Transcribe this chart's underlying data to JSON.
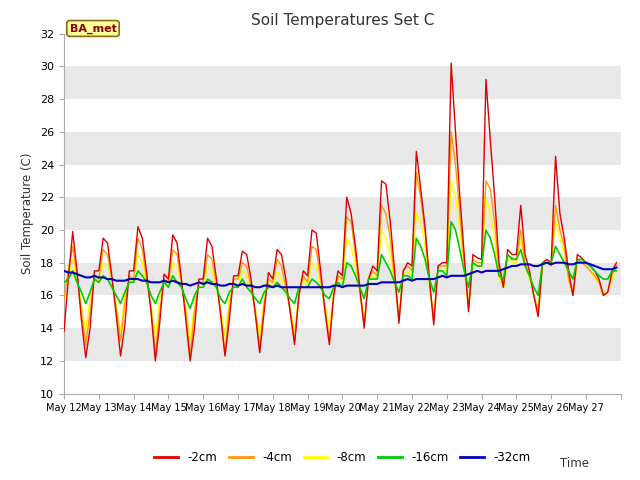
{
  "title": "Soil Temperatures Set C",
  "xlabel": "Time",
  "ylabel": "Soil Temperature (C)",
  "ylim": [
    10,
    32
  ],
  "yticks": [
    10,
    12,
    14,
    16,
    18,
    20,
    22,
    24,
    26,
    28,
    30,
    32
  ],
  "annotation": "BA_met",
  "fig_facecolor": "#ffffff",
  "plot_bg_color": "#e8e8e8",
  "grid_colors": [
    "#ffffff",
    "#e8e8e8"
  ],
  "legend_labels": [
    "-2cm",
    "-4cm",
    "-8cm",
    "-16cm",
    "-32cm"
  ],
  "legend_colors": [
    "#dd0000",
    "#ff9900",
    "#ffff00",
    "#00cc00",
    "#0000bb"
  ],
  "line_widths": [
    1.0,
    1.0,
    1.0,
    1.2,
    1.5
  ],
  "x_tick_labels": [
    "May 12",
    "May 13",
    "May 14",
    "May 15",
    "May 16",
    "May 17",
    "May 18",
    "May 19",
    "May 20",
    "May 21",
    "May 22",
    "May 23",
    "May 24",
    "May 25",
    "May 26",
    "May 27"
  ],
  "n_days": 16,
  "pts_per_day": 8,
  "d2cm": [
    13.8,
    17.0,
    19.9,
    17.5,
    14.5,
    12.2,
    14.0,
    17.5,
    17.5,
    19.5,
    19.2,
    17.2,
    14.8,
    12.3,
    14.2,
    17.5,
    17.5,
    20.2,
    19.5,
    17.4,
    15.0,
    12.0,
    14.3,
    17.3,
    17.0,
    19.7,
    19.2,
    17.0,
    14.5,
    12.0,
    14.0,
    17.0,
    17.0,
    19.5,
    19.0,
    17.1,
    14.8,
    12.3,
    14.5,
    17.2,
    17.2,
    18.7,
    18.5,
    17.0,
    14.8,
    12.5,
    15.0,
    17.4,
    17.0,
    18.8,
    18.5,
    17.0,
    15.0,
    13.0,
    16.0,
    17.5,
    17.2,
    20.0,
    19.8,
    17.5,
    15.0,
    13.0,
    16.0,
    17.5,
    17.2,
    22.0,
    21.0,
    19.0,
    16.5,
    14.0,
    17.0,
    17.8,
    17.5,
    23.0,
    22.8,
    20.5,
    17.5,
    14.3,
    17.5,
    18.0,
    17.8,
    24.8,
    22.5,
    20.2,
    17.0,
    14.2,
    17.8,
    18.0,
    18.0,
    30.2,
    26.0,
    22.0,
    18.5,
    15.0,
    18.5,
    18.3,
    18.2,
    29.2,
    25.5,
    22.0,
    18.0,
    16.5,
    18.8,
    18.5,
    18.5,
    21.5,
    18.5,
    17.5,
    16.0,
    14.7,
    18.0,
    18.2,
    18.0,
    24.5,
    21.0,
    19.5,
    17.5,
    16.0,
    18.5,
    18.3,
    18.0,
    17.8,
    17.5,
    17.0,
    16.0,
    16.2,
    17.5,
    18.0
  ],
  "d4cm": [
    15.8,
    17.5,
    19.0,
    17.2,
    15.0,
    13.0,
    15.0,
    17.2,
    17.0,
    18.8,
    18.5,
    17.0,
    15.2,
    13.2,
    15.5,
    17.2,
    17.0,
    19.5,
    18.8,
    17.0,
    15.2,
    12.5,
    15.0,
    17.0,
    16.8,
    18.8,
    18.5,
    16.8,
    15.0,
    12.3,
    15.0,
    16.8,
    16.8,
    18.5,
    18.2,
    16.8,
    15.0,
    12.5,
    15.2,
    17.0,
    17.0,
    18.0,
    17.8,
    16.5,
    15.0,
    12.8,
    15.5,
    17.0,
    16.8,
    18.2,
    17.8,
    16.5,
    15.0,
    13.2,
    16.0,
    17.2,
    16.8,
    19.0,
    18.8,
    17.0,
    15.2,
    13.2,
    16.0,
    17.2,
    17.0,
    20.8,
    20.5,
    18.5,
    16.2,
    14.2,
    17.0,
    17.5,
    17.2,
    21.5,
    21.0,
    19.5,
    17.0,
    14.5,
    17.5,
    17.8,
    17.5,
    23.5,
    22.0,
    19.8,
    16.8,
    14.5,
    17.8,
    17.8,
    17.8,
    26.0,
    24.0,
    21.0,
    18.0,
    15.2,
    18.2,
    18.0,
    18.0,
    23.0,
    22.5,
    20.5,
    17.5,
    16.5,
    18.5,
    18.3,
    18.2,
    20.0,
    18.0,
    17.2,
    16.0,
    15.0,
    18.0,
    18.0,
    17.8,
    21.5,
    20.0,
    19.0,
    17.0,
    16.0,
    18.2,
    18.0,
    17.8,
    17.5,
    17.2,
    16.8,
    16.0,
    16.2,
    17.3,
    17.8
  ],
  "d8cm": [
    16.5,
    17.2,
    18.2,
    17.0,
    15.5,
    13.8,
    15.8,
    17.0,
    16.8,
    18.0,
    17.8,
    16.8,
    15.5,
    13.8,
    16.0,
    17.0,
    16.8,
    18.5,
    18.0,
    16.8,
    15.5,
    13.5,
    15.8,
    16.8,
    16.5,
    18.0,
    17.8,
    16.5,
    15.3,
    13.2,
    15.5,
    16.5,
    16.5,
    17.8,
    17.5,
    16.5,
    15.2,
    13.5,
    15.8,
    16.8,
    16.5,
    17.5,
    17.2,
    16.2,
    15.2,
    13.5,
    15.8,
    16.8,
    16.5,
    17.5,
    17.0,
    16.2,
    15.2,
    13.8,
    16.2,
    17.0,
    16.5,
    18.0,
    17.8,
    16.5,
    15.5,
    14.0,
    16.2,
    17.0,
    16.8,
    19.5,
    19.0,
    17.8,
    16.2,
    14.5,
    17.0,
    17.2,
    17.0,
    20.0,
    19.5,
    18.5,
    16.8,
    14.8,
    17.2,
    17.5,
    17.2,
    21.0,
    20.5,
    19.0,
    16.5,
    14.8,
    17.5,
    17.5,
    17.5,
    23.0,
    22.0,
    20.0,
    17.5,
    15.5,
    18.0,
    17.8,
    17.8,
    22.0,
    21.0,
    19.5,
    17.0,
    16.5,
    18.2,
    18.0,
    18.0,
    19.5,
    17.8,
    17.0,
    16.0,
    15.2,
    17.8,
    18.0,
    17.8,
    20.5,
    19.5,
    18.5,
    17.0,
    16.0,
    18.0,
    18.0,
    17.8,
    17.5,
    17.0,
    16.8,
    16.2,
    16.2,
    17.0,
    17.5
  ],
  "d16cm": [
    16.8,
    17.0,
    17.5,
    16.8,
    16.2,
    15.5,
    16.2,
    17.0,
    16.8,
    17.2,
    17.0,
    16.5,
    16.0,
    15.5,
    16.2,
    16.8,
    16.8,
    17.5,
    17.2,
    16.8,
    16.0,
    15.5,
    16.2,
    16.8,
    16.5,
    17.2,
    16.8,
    16.5,
    15.8,
    15.2,
    16.0,
    16.5,
    16.5,
    17.0,
    16.8,
    16.5,
    15.8,
    15.5,
    16.2,
    16.5,
    16.5,
    17.0,
    16.5,
    16.2,
    15.8,
    15.5,
    16.2,
    16.5,
    16.5,
    16.8,
    16.5,
    16.2,
    15.8,
    15.5,
    16.5,
    16.5,
    16.5,
    17.0,
    16.8,
    16.5,
    16.0,
    15.8,
    16.5,
    16.8,
    16.5,
    18.0,
    17.8,
    17.2,
    16.5,
    15.8,
    17.0,
    17.0,
    17.0,
    18.5,
    18.0,
    17.5,
    16.8,
    16.2,
    17.2,
    17.2,
    17.0,
    19.5,
    19.0,
    18.2,
    17.0,
    16.2,
    17.5,
    17.5,
    17.2,
    20.5,
    20.0,
    18.8,
    17.5,
    16.5,
    18.0,
    17.8,
    17.8,
    20.0,
    19.5,
    18.5,
    17.2,
    17.0,
    18.5,
    18.2,
    18.2,
    18.8,
    17.8,
    17.2,
    16.5,
    16.0,
    18.0,
    18.0,
    18.0,
    19.0,
    18.5,
    18.0,
    17.5,
    17.0,
    18.2,
    18.2,
    18.0,
    17.8,
    17.5,
    17.2,
    17.0,
    17.0,
    17.5,
    17.5
  ],
  "d32cm": [
    17.5,
    17.4,
    17.4,
    17.3,
    17.2,
    17.1,
    17.1,
    17.2,
    17.1,
    17.1,
    17.0,
    17.0,
    16.9,
    16.9,
    16.9,
    17.0,
    17.0,
    17.0,
    16.9,
    16.9,
    16.8,
    16.8,
    16.8,
    16.9,
    16.8,
    16.9,
    16.8,
    16.7,
    16.7,
    16.6,
    16.7,
    16.8,
    16.7,
    16.8,
    16.7,
    16.7,
    16.6,
    16.6,
    16.7,
    16.7,
    16.6,
    16.7,
    16.6,
    16.6,
    16.5,
    16.5,
    16.6,
    16.6,
    16.5,
    16.6,
    16.5,
    16.5,
    16.5,
    16.5,
    16.5,
    16.5,
    16.5,
    16.5,
    16.5,
    16.5,
    16.5,
    16.5,
    16.6,
    16.6,
    16.5,
    16.6,
    16.6,
    16.6,
    16.6,
    16.6,
    16.7,
    16.7,
    16.7,
    16.8,
    16.8,
    16.8,
    16.8,
    16.8,
    16.9,
    17.0,
    16.9,
    17.0,
    17.0,
    17.0,
    17.0,
    17.0,
    17.1,
    17.2,
    17.1,
    17.2,
    17.2,
    17.2,
    17.2,
    17.3,
    17.4,
    17.5,
    17.4,
    17.5,
    17.5,
    17.5,
    17.5,
    17.6,
    17.7,
    17.8,
    17.8,
    17.9,
    17.9,
    17.9,
    17.8,
    17.8,
    17.9,
    18.0,
    17.9,
    18.0,
    18.0,
    18.0,
    17.9,
    17.9,
    18.0,
    18.0,
    18.0,
    17.9,
    17.8,
    17.7,
    17.6,
    17.6,
    17.6,
    17.7
  ]
}
